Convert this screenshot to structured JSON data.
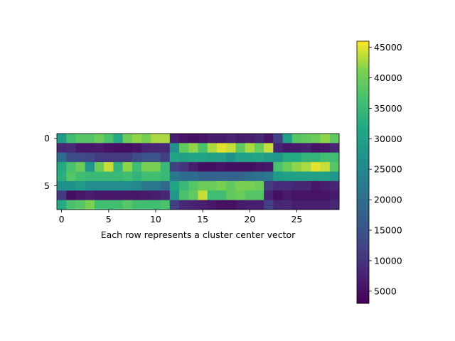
{
  "chart_data": {
    "type": "heatmap",
    "title": "",
    "xlabel": "Each row represents a cluster center vector",
    "ylabel": "",
    "n_rows": 8,
    "n_cols": 30,
    "x_ticks": [
      0,
      5,
      10,
      15,
      20,
      25
    ],
    "y_ticks": [
      0,
      5
    ],
    "colormap": "viridis",
    "colorbar": {
      "vmin": 3000,
      "vmax": 46000,
      "ticks": [
        5000,
        10000,
        15000,
        20000,
        25000,
        30000,
        35000,
        40000,
        45000
      ]
    },
    "values": [
      [
        29000,
        36000,
        38000,
        38000,
        40000,
        37000,
        32000,
        40000,
        42000,
        41000,
        43000,
        43000,
        7000,
        5500,
        5000,
        5500,
        6500,
        6500,
        7500,
        6500,
        7000,
        8000,
        5500,
        12000,
        30000,
        38000,
        39000,
        40000,
        42000,
        39000
      ],
      [
        8000,
        9000,
        6000,
        6000,
        6500,
        5500,
        5000,
        5000,
        5500,
        7500,
        8000,
        8500,
        27000,
        39000,
        42000,
        37000,
        43000,
        45000,
        44000,
        39000,
        43000,
        40000,
        44000,
        7500,
        6000,
        6500,
        7000,
        5500,
        6000,
        8000
      ],
      [
        20000,
        14000,
        14000,
        13000,
        11000,
        11000,
        11000,
        11000,
        14000,
        15000,
        15000,
        12000,
        31000,
        30000,
        31000,
        31000,
        30000,
        30000,
        27000,
        30000,
        30000,
        31000,
        29000,
        28000,
        32000,
        32000,
        34000,
        34000,
        36000,
        36000
      ],
      [
        32000,
        37000,
        40000,
        28000,
        40000,
        44000,
        34000,
        42000,
        36000,
        41000,
        41000,
        35000,
        12000,
        10000,
        7000,
        5000,
        5000,
        5500,
        5000,
        5000,
        5000,
        5500,
        6000,
        37000,
        40000,
        42000,
        43000,
        45000,
        44000,
        38000
      ],
      [
        33000,
        38000,
        36000,
        35000,
        35000,
        35000,
        35000,
        36000,
        34000,
        36000,
        36000,
        35000,
        22000,
        20000,
        20000,
        18000,
        18000,
        18000,
        18000,
        18000,
        20000,
        21000,
        22000,
        29000,
        30000,
        30000,
        30000,
        30000,
        30000,
        28000
      ],
      [
        27000,
        27000,
        29000,
        26000,
        26000,
        26000,
        26000,
        26000,
        25000,
        22000,
        22000,
        19000,
        31000,
        35000,
        38000,
        40000,
        40000,
        41000,
        39000,
        41000,
        41000,
        40000,
        11000,
        9000,
        9000,
        8000,
        8000,
        6000,
        7000,
        8000
      ],
      [
        11000,
        5000,
        6000,
        7000,
        6000,
        6000,
        6000,
        6000,
        6000,
        6500,
        7000,
        8000,
        28000,
        37000,
        39000,
        44000,
        36000,
        36000,
        39000,
        40000,
        38000,
        38000,
        7500,
        5000,
        6500,
        5500,
        5500,
        5500,
        5500,
        6500
      ],
      [
        32000,
        37000,
        38000,
        41000,
        36000,
        36000,
        36000,
        38000,
        36000,
        36000,
        36000,
        37000,
        12000,
        8500,
        7500,
        7000,
        6000,
        5000,
        5000,
        6500,
        7000,
        7000,
        12000,
        8000,
        8500,
        7000,
        7000,
        7000,
        7000,
        8000
      ]
    ]
  }
}
